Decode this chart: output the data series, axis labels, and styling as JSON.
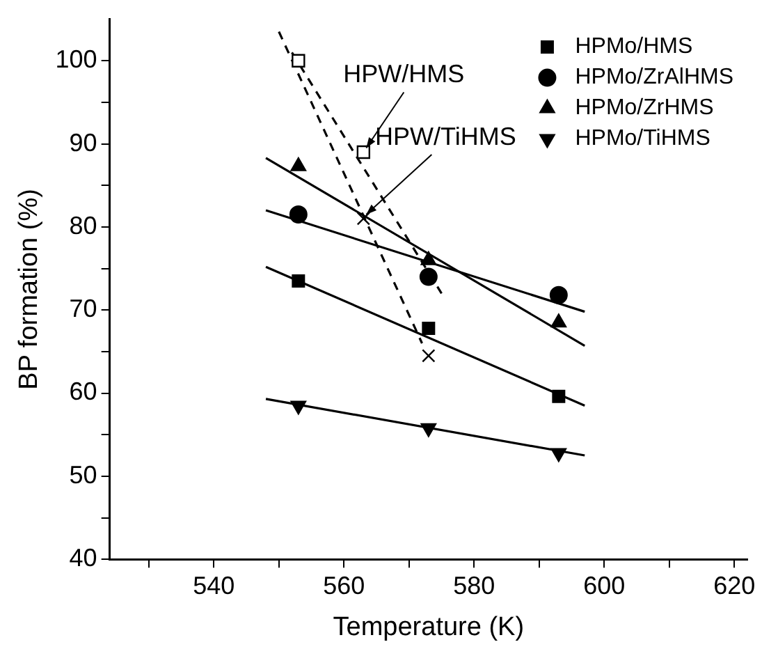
{
  "chart_data": {
    "type": "scatter",
    "xlabel": "Temperature (K)",
    "ylabel": "BP formation (%)",
    "xlim": [
      524,
      622
    ],
    "xticks": [
      {
        "value": 530,
        "label": null
      },
      540,
      {
        "value": 550,
        "label": null
      },
      560,
      {
        "value": 570,
        "label": null
      },
      580,
      {
        "value": 590,
        "label": null
      },
      600,
      {
        "value": 610,
        "label": null
      },
      620
    ],
    "ylim": [
      40,
      105
    ],
    "yticks": [
      40,
      {
        "value": 45,
        "label": null
      },
      50,
      {
        "value": 55,
        "label": null
      },
      60,
      {
        "value": 65,
        "label": null
      },
      70,
      {
        "value": 75,
        "label": null
      },
      80,
      {
        "value": 85,
        "label": null
      },
      90,
      {
        "value": 95,
        "label": null
      },
      100
    ],
    "grid": false,
    "legend": "top right",
    "series": [
      {
        "name": "HPMo/HMS",
        "color": "#000000",
        "marker": "square",
        "x": [
          553,
          573,
          593
        ],
        "values": [
          73.5,
          67.8,
          59.6
        ]
      },
      {
        "name": "HPMo/ZrAlHMS",
        "color": "#000000",
        "marker": "circle",
        "x": [
          553,
          573,
          593
        ],
        "values": [
          81.5,
          74,
          71.8
        ]
      },
      {
        "name": "HPMo/ZrHMS",
        "color": "#000000",
        "marker": "triangle",
        "x": [
          553,
          573,
          593
        ],
        "values": [
          87.3,
          76,
          68.5
        ]
      },
      {
        "name": "HPMo/TiHMS",
        "color": "#000000",
        "marker": "triangle-down",
        "x": [
          553,
          573,
          593
        ],
        "values": [
          58.5,
          55.8,
          52.8
        ]
      },
      {
        "color": "#000000",
        "marker": "square",
        "x": [
          553,
          563
        ],
        "values": [
          100,
          89
        ]
      },
      {
        "color": "#000000",
        "marker": "cross",
        "x": [
          563,
          573
        ],
        "values": [
          81,
          64.5
        ]
      },
      {
        "type": "line",
        "color": "#000000",
        "marker": "none",
        "line_style": "solid",
        "x": [
          548,
          597
        ],
        "values": [
          75.2,
          58.5
        ]
      },
      {
        "type": "line",
        "color": "#000000",
        "marker": "none",
        "line_style": "solid",
        "x": [
          548,
          597
        ],
        "values": [
          82,
          69.8
        ]
      },
      {
        "type": "line",
        "color": "#000000",
        "marker": "none",
        "line_style": "solid",
        "x": [
          548,
          597
        ],
        "values": [
          88.3,
          65.7
        ]
      },
      {
        "type": "line",
        "color": "#000000",
        "marker": "none",
        "line_style": "solid",
        "x": [
          548,
          597
        ],
        "values": [
          59.3,
          52.5
        ]
      },
      {
        "type": "line",
        "color": "#000000",
        "marker": "none",
        "line_style": "dashed",
        "x": [
          552,
          575
        ],
        "values": [
          101,
          72
        ]
      },
      {
        "type": "line",
        "color": "#000000",
        "marker": "none",
        "line_style": "dashed",
        "x": [
          550,
          572
        ],
        "values": [
          103.5,
          66
        ]
      }
    ],
    "annotations": [
      {
        "text": "HPW/HMS",
        "x": 563,
        "y": 89
      },
      {
        "text": "HPW/TiHMS",
        "x": 563,
        "y": 81
      }
    ]
  }
}
